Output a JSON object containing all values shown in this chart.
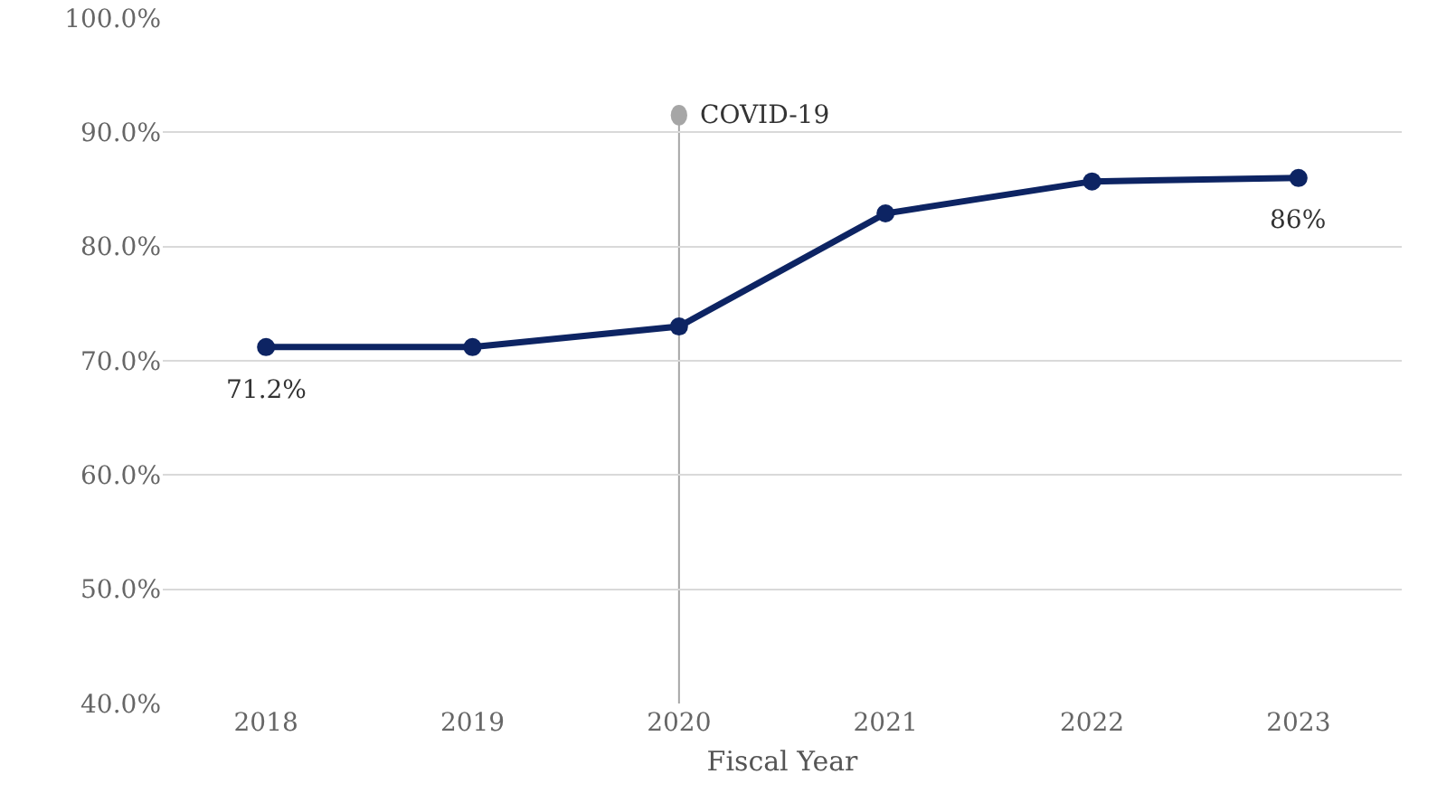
{
  "chart_data": {
    "type": "line",
    "xlabel": "Fiscal Year",
    "categories": [
      "2018",
      "2019",
      "2020",
      "2021",
      "2022",
      "2023"
    ],
    "series": [
      {
        "color": "#0d2463",
        "values": [
          71.2,
          71.2,
          73.0,
          82.9,
          85.7,
          86
        ],
        "value_labels": [
          "71.2%",
          null,
          null,
          null,
          null,
          "86%"
        ]
      }
    ],
    "ylim": [
      40,
      100
    ],
    "yticks": [
      {
        "value": 40,
        "label": "40.0%"
      },
      {
        "value": 50,
        "label": "50.0%"
      },
      {
        "value": 60,
        "label": "60.0%"
      },
      {
        "value": 70,
        "label": "70.0%"
      },
      {
        "value": 80,
        "label": "80.0%"
      },
      {
        "value": 90,
        "label": "90.0%"
      },
      {
        "value": 100,
        "label": "100.0%"
      }
    ],
    "grid": "y",
    "marker": "circle",
    "line_style": "solid",
    "ref_lines": [
      {
        "axis": "x",
        "value": "2020",
        "color": "#a6a6a6"
      }
    ],
    "annotations": [
      {
        "text": "COVID-19",
        "x": "2020",
        "y": 91.5
      }
    ]
  }
}
